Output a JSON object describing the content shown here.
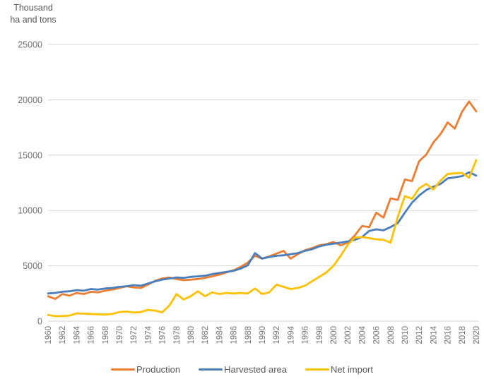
{
  "title": {
    "line1": "Thousand",
    "line2": "ha and tons"
  },
  "colors": {
    "production": "#ED7D31",
    "harvested_area": "#4A7EBB",
    "net_import": "#FFC000",
    "gridline": "#D9D9D9",
    "axis_line": "#D3D3D3",
    "tick_text": "#737373",
    "title_text": "#595959",
    "background": "#FFFFFF"
  },
  "chart_data": {
    "type": "line",
    "title": "Thousand ha and tons",
    "xlabel": "",
    "ylabel": "Thousand ha and tons",
    "ylim": [
      0,
      25000
    ],
    "y_ticks": [
      0,
      5000,
      10000,
      15000,
      20000,
      25000
    ],
    "x_range": [
      1960,
      2020
    ],
    "x_tick_step": 2,
    "x_tick_labels": [
      "1960",
      "1962",
      "1964",
      "1966",
      "1968",
      "1970",
      "1972",
      "1974",
      "1976",
      "1978",
      "1980",
      "1982",
      "1984",
      "1986",
      "1988",
      "1990",
      "1992",
      "1994",
      "1996",
      "1998",
      "2000",
      "2002",
      "2004",
      "2006",
      "2008",
      "2010",
      "2012",
      "2014",
      "2016",
      "2018",
      "2020"
    ],
    "grid": true,
    "legend_position": "bottom",
    "series": [
      {
        "name": "Production",
        "color": "#ED7D31",
        "values": [
          2250,
          2000,
          2450,
          2300,
          2550,
          2450,
          2650,
          2600,
          2750,
          2850,
          3000,
          3150,
          3050,
          3000,
          3300,
          3650,
          3850,
          3950,
          3800,
          3700,
          3750,
          3800,
          3900,
          4050,
          4200,
          4400,
          4600,
          4900,
          5300,
          5900,
          5650,
          5850,
          6100,
          6350,
          5650,
          6050,
          6400,
          6600,
          6850,
          6950,
          7150,
          6850,
          7100,
          7750,
          8600,
          8500,
          9800,
          9350,
          11100,
          10950,
          12800,
          12650,
          14450,
          15050,
          16150,
          16900,
          17950,
          17400,
          18900,
          19850,
          18950
        ]
      },
      {
        "name": "Harvested area",
        "color": "#4A7EBB",
        "values": [
          2500,
          2550,
          2650,
          2700,
          2800,
          2750,
          2900,
          2850,
          2950,
          3000,
          3100,
          3150,
          3250,
          3200,
          3400,
          3600,
          3750,
          3850,
          3950,
          3900,
          4000,
          4050,
          4100,
          4250,
          4350,
          4450,
          4550,
          4750,
          5050,
          6150,
          5650,
          5800,
          5900,
          5950,
          6050,
          6150,
          6350,
          6500,
          6750,
          6900,
          7000,
          7100,
          7200,
          7350,
          7600,
          8150,
          8300,
          8200,
          8500,
          8850,
          9800,
          10700,
          11350,
          11850,
          12150,
          12400,
          12900,
          13000,
          13100,
          13450,
          13150
        ]
      },
      {
        "name": "Net import",
        "color": "#FFC000",
        "values": [
          550,
          450,
          450,
          500,
          700,
          680,
          650,
          620,
          600,
          650,
          820,
          870,
          780,
          820,
          1020,
          950,
          800,
          1400,
          2450,
          1950,
          2250,
          2700,
          2250,
          2600,
          2450,
          2550,
          2500,
          2550,
          2500,
          2950,
          2450,
          2600,
          3300,
          3100,
          2900,
          3000,
          3200,
          3600,
          4000,
          4400,
          5000,
          5900,
          6900,
          7550,
          7600,
          7500,
          7400,
          7350,
          7100,
          9400,
          11300,
          11050,
          12000,
          12400,
          11900,
          12700,
          13300,
          13350,
          13400,
          12950,
          14550
        ]
      }
    ]
  }
}
